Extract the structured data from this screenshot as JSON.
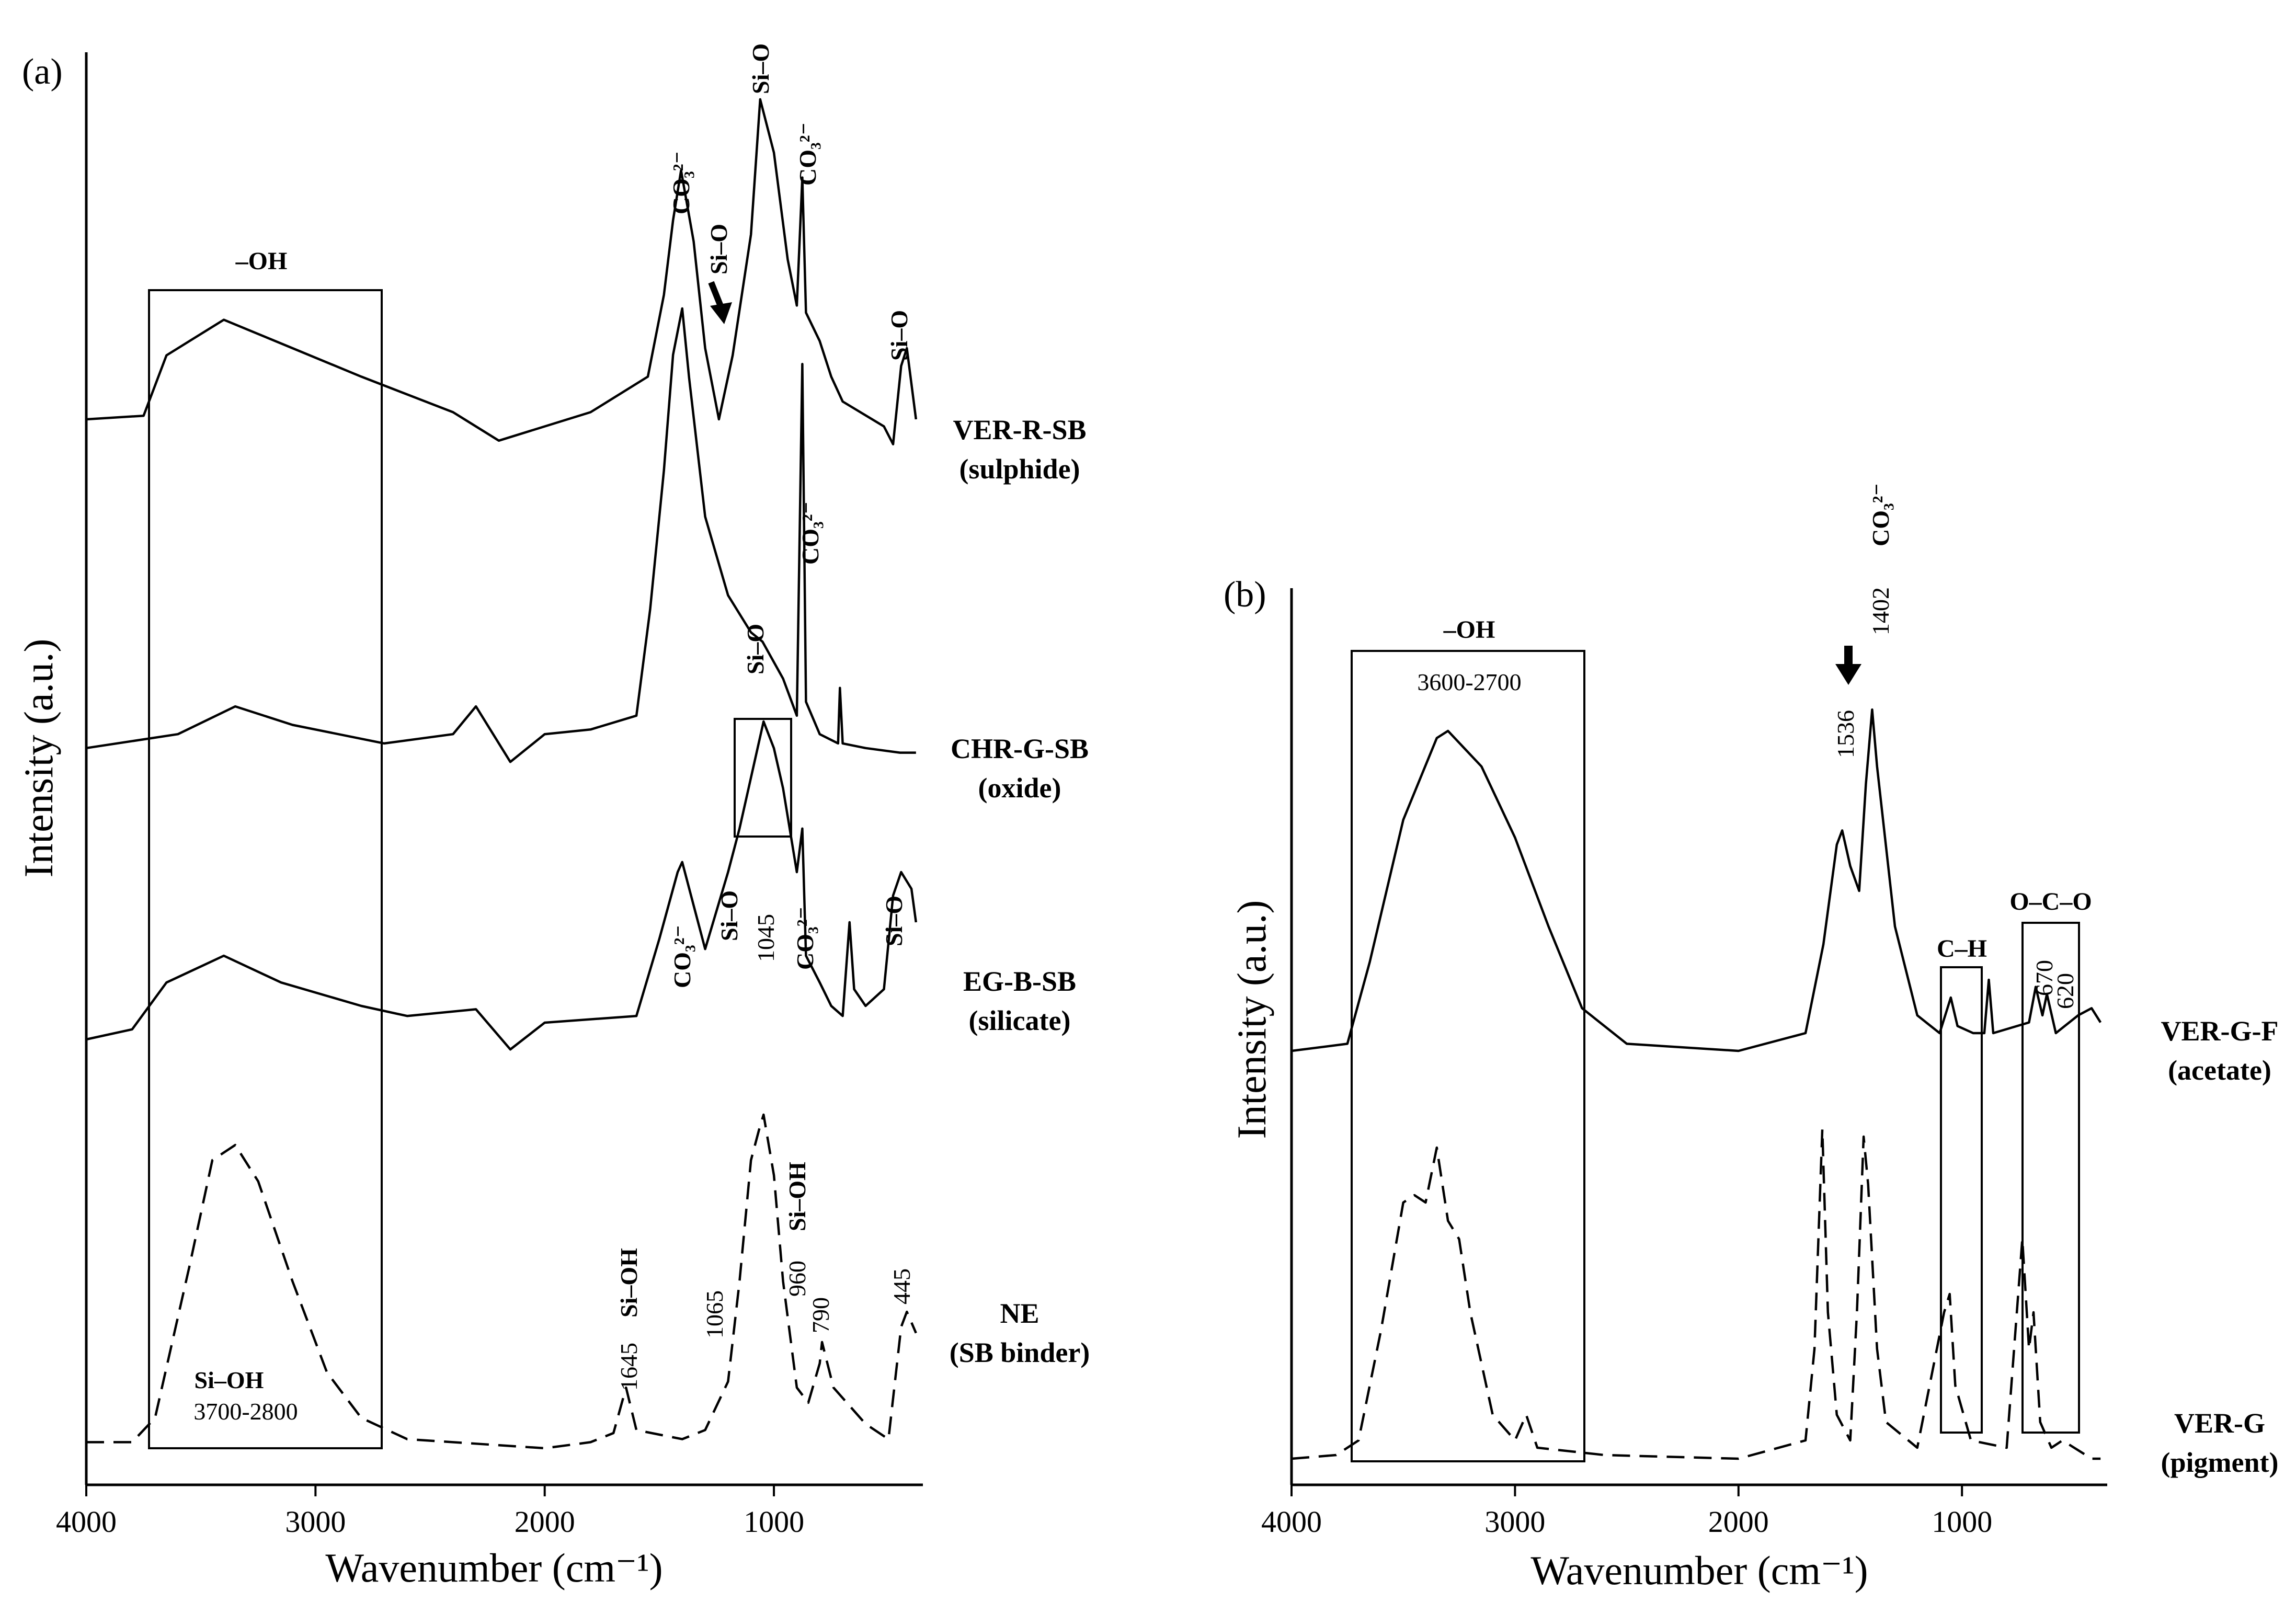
{
  "colors": {
    "ink": "#000000",
    "background": "#ffffff"
  },
  "chart_data": [
    {
      "panel": "(a)",
      "type": "line",
      "xlabel": "Wavenumber (cm⁻¹)",
      "ylabel": "Intensity (a.u.)",
      "xlim": [
        4000,
        350
      ],
      "x_reversed": true,
      "x_ticks": [
        "4000",
        "3000",
        "2000",
        "1000"
      ],
      "grid": false,
      "legend": "none; sample names printed at right of each trace",
      "series": [
        {
          "name": "VER-R-SB",
          "subtitle": "(sulphide)",
          "style": "solid",
          "points": [
            [
              4000,
              0.1
            ],
            [
              3750,
              0.11
            ],
            [
              3650,
              0.28
            ],
            [
              3400,
              0.38
            ],
            [
              3100,
              0.3
            ],
            [
              2800,
              0.22
            ],
            [
              2400,
              0.12
            ],
            [
              2200,
              0.04
            ],
            [
              1800,
              0.12
            ],
            [
              1550,
              0.22
            ],
            [
              1480,
              0.45
            ],
            [
              1440,
              0.66
            ],
            [
              1405,
              0.8
            ],
            [
              1350,
              0.6
            ],
            [
              1300,
              0.3
            ],
            [
              1240,
              0.1
            ],
            [
              1180,
              0.28
            ],
            [
              1100,
              0.62
            ],
            [
              1060,
              1.0
            ],
            [
              1000,
              0.85
            ],
            [
              940,
              0.55
            ],
            [
              900,
              0.42
            ],
            [
              876,
              0.78
            ],
            [
              860,
              0.4
            ],
            [
              800,
              0.32
            ],
            [
              750,
              0.22
            ],
            [
              700,
              0.15
            ],
            [
              520,
              0.08
            ],
            [
              480,
              0.03
            ],
            [
              445,
              0.25
            ],
            [
              420,
              0.3
            ],
            [
              380,
              0.1
            ]
          ]
        },
        {
          "name": "CHR-G-SB",
          "subtitle": "(oxide)",
          "style": "solid",
          "points": [
            [
              4000,
              0.05
            ],
            [
              3600,
              0.08
            ],
            [
              3350,
              0.14
            ],
            [
              3100,
              0.1
            ],
            [
              2700,
              0.06
            ],
            [
              2400,
              0.08
            ],
            [
              2300,
              0.14
            ],
            [
              2150,
              0.02
            ],
            [
              2000,
              0.08
            ],
            [
              1800,
              0.09
            ],
            [
              1600,
              0.12
            ],
            [
              1540,
              0.35
            ],
            [
              1480,
              0.65
            ],
            [
              1440,
              0.9
            ],
            [
              1400,
              1.0
            ],
            [
              1370,
              0.85
            ],
            [
              1300,
              0.55
            ],
            [
              1200,
              0.38
            ],
            [
              1100,
              0.3
            ],
            [
              1050,
              0.28
            ],
            [
              960,
              0.2
            ],
            [
              900,
              0.12
            ],
            [
              876,
              0.88
            ],
            [
              860,
              0.15
            ],
            [
              800,
              0.08
            ],
            [
              720,
              0.06
            ],
            [
              712,
              0.18
            ],
            [
              700,
              0.06
            ],
            [
              600,
              0.05
            ],
            [
              450,
              0.04
            ],
            [
              380,
              0.04
            ]
          ]
        },
        {
          "name": "EG-B-SB",
          "subtitle": "(silicate)",
          "style": "solid",
          "points": [
            [
              4000,
              0.05
            ],
            [
              3800,
              0.08
            ],
            [
              3650,
              0.22
            ],
            [
              3400,
              0.3
            ],
            [
              3150,
              0.22
            ],
            [
              2800,
              0.15
            ],
            [
              2600,
              0.12
            ],
            [
              2300,
              0.14
            ],
            [
              2150,
              0.02
            ],
            [
              2000,
              0.1
            ],
            [
              1600,
              0.12
            ],
            [
              1500,
              0.35
            ],
            [
              1420,
              0.55
            ],
            [
              1400,
              0.58
            ],
            [
              1350,
              0.45
            ],
            [
              1300,
              0.32
            ],
            [
              1200,
              0.55
            ],
            [
              1150,
              0.68
            ],
            [
              1045,
              1.0
            ],
            [
              1000,
              0.92
            ],
            [
              960,
              0.8
            ],
            [
              900,
              0.55
            ],
            [
              876,
              0.68
            ],
            [
              860,
              0.3
            ],
            [
              800,
              0.22
            ],
            [
              750,
              0.15
            ],
            [
              700,
              0.12
            ],
            [
              670,
              0.4
            ],
            [
              650,
              0.2
            ],
            [
              600,
              0.15
            ],
            [
              520,
              0.2
            ],
            [
              480,
              0.48
            ],
            [
              445,
              0.55
            ],
            [
              400,
              0.5
            ],
            [
              380,
              0.4
            ]
          ]
        },
        {
          "name": "NE",
          "subtitle": "(SB binder)",
          "style": "dashed",
          "points": [
            [
              4000,
              0.02
            ],
            [
              3800,
              0.02
            ],
            [
              3700,
              0.1
            ],
            [
              3550,
              0.6
            ],
            [
              3450,
              0.95
            ],
            [
              3350,
              1.0
            ],
            [
              3250,
              0.88
            ],
            [
              3100,
              0.55
            ],
            [
              2950,
              0.25
            ],
            [
              2800,
              0.1
            ],
            [
              2600,
              0.03
            ],
            [
              2000,
              0.0
            ],
            [
              1800,
              0.02
            ],
            [
              1700,
              0.05
            ],
            [
              1645,
              0.2
            ],
            [
              1600,
              0.06
            ],
            [
              1400,
              0.03
            ],
            [
              1300,
              0.06
            ],
            [
              1200,
              0.22
            ],
            [
              1150,
              0.55
            ],
            [
              1100,
              0.95
            ],
            [
              1065,
              1.05
            ],
            [
              1045,
              1.1
            ],
            [
              1000,
              0.9
            ],
            [
              960,
              0.55
            ],
            [
              900,
              0.2
            ],
            [
              850,
              0.15
            ],
            [
              800,
              0.28
            ],
            [
              790,
              0.35
            ],
            [
              740,
              0.2
            ],
            [
              600,
              0.08
            ],
            [
              500,
              0.03
            ],
            [
              445,
              0.4
            ],
            [
              420,
              0.45
            ],
            [
              380,
              0.38
            ]
          ]
        }
      ],
      "annotations": [
        "CO₃²⁻",
        "Si–O",
        "Si–OH",
        "–OH",
        "1645",
        "1065",
        "1045",
        "960",
        "790",
        "445",
        "3700-2800"
      ],
      "boxes": [
        {
          "label": "–OH",
          "range": [
            3700,
            2800
          ]
        },
        {
          "label": "",
          "range": [
            1160,
            900
          ]
        }
      ]
    },
    {
      "panel": "(b)",
      "type": "line",
      "xlabel": "Wavenumber (cm⁻¹)",
      "ylabel": "Intensity (a.u.)",
      "xlim": [
        4000,
        350
      ],
      "x_reversed": true,
      "x_ticks": [
        "4000",
        "3000",
        "2000",
        "1000"
      ],
      "grid": false,
      "legend": "none; sample names printed at right of each trace",
      "series": [
        {
          "name": "VER-G-F",
          "subtitle": "(acetate)",
          "style": "solid",
          "points": [
            [
              4000,
              0.0
            ],
            [
              3750,
              0.02
            ],
            [
              3650,
              0.25
            ],
            [
              3500,
              0.65
            ],
            [
              3350,
              0.88
            ],
            [
              3300,
              0.9
            ],
            [
              3150,
              0.8
            ],
            [
              3000,
              0.6
            ],
            [
              2850,
              0.35
            ],
            [
              2700,
              0.12
            ],
            [
              2500,
              0.02
            ],
            [
              2000,
              0.0
            ],
            [
              1700,
              0.05
            ],
            [
              1620,
              0.3
            ],
            [
              1560,
              0.58
            ],
            [
              1536,
              0.62
            ],
            [
              1500,
              0.52
            ],
            [
              1460,
              0.45
            ],
            [
              1430,
              0.75
            ],
            [
              1402,
              0.96
            ],
            [
              1380,
              0.8
            ],
            [
              1300,
              0.35
            ],
            [
              1200,
              0.1
            ],
            [
              1100,
              0.05
            ],
            [
              1050,
              0.15
            ],
            [
              1020,
              0.07
            ],
            [
              950,
              0.05
            ],
            [
              900,
              0.05
            ],
            [
              880,
              0.2
            ],
            [
              860,
              0.05
            ],
            [
              700,
              0.08
            ],
            [
              670,
              0.18
            ],
            [
              640,
              0.1
            ],
            [
              620,
              0.16
            ],
            [
              580,
              0.05
            ],
            [
              480,
              0.1
            ],
            [
              420,
              0.12
            ],
            [
              380,
              0.08
            ]
          ]
        },
        {
          "name": "VER-G",
          "subtitle": "(pigment)",
          "style": "dashed",
          "points": [
            [
              4000,
              0.0
            ],
            [
              3800,
              0.01
            ],
            [
              3700,
              0.05
            ],
            [
              3600,
              0.35
            ],
            [
              3500,
              0.7
            ],
            [
              3450,
              0.72
            ],
            [
              3400,
              0.7
            ],
            [
              3350,
              0.85
            ],
            [
              3300,
              0.65
            ],
            [
              3250,
              0.6
            ],
            [
              3200,
              0.4
            ],
            [
              3100,
              0.12
            ],
            [
              3000,
              0.05
            ],
            [
              2950,
              0.12
            ],
            [
              2900,
              0.03
            ],
            [
              2600,
              0.01
            ],
            [
              2000,
              0.0
            ],
            [
              1700,
              0.05
            ],
            [
              1660,
              0.3
            ],
            [
              1625,
              0.9
            ],
            [
              1600,
              0.4
            ],
            [
              1560,
              0.12
            ],
            [
              1500,
              0.05
            ],
            [
              1470,
              0.4
            ],
            [
              1440,
              0.88
            ],
            [
              1420,
              0.75
            ],
            [
              1380,
              0.3
            ],
            [
              1340,
              0.1
            ],
            [
              1200,
              0.03
            ],
            [
              1080,
              0.4
            ],
            [
              1055,
              0.45
            ],
            [
              1030,
              0.2
            ],
            [
              960,
              0.05
            ],
            [
              800,
              0.03
            ],
            [
              730,
              0.6
            ],
            [
              700,
              0.3
            ],
            [
              680,
              0.4
            ],
            [
              650,
              0.1
            ],
            [
              600,
              0.03
            ],
            [
              550,
              0.05
            ],
            [
              420,
              0.0
            ],
            [
              380,
              0.0
            ]
          ]
        }
      ],
      "annotations": [
        "CO₃²⁻",
        "1402",
        "1536",
        "–OH",
        "3600-2700",
        "C–H",
        "O–C–O",
        "670",
        "620"
      ],
      "boxes": [
        {
          "label": "–OH",
          "range": [
            3750,
            2700
          ]
        },
        {
          "label": "C–H",
          "range": [
            1130,
            950
          ]
        },
        {
          "label": "O–C–O",
          "range": [
            760,
            530
          ]
        }
      ]
    }
  ],
  "text": {
    "a": {
      "panel_letter": "(a)",
      "y_label": "Intensity (a.u.)",
      "x_label": "Wavenumber (cm⁻¹)",
      "ticks": [
        "4000",
        "3000",
        "2000",
        "1000"
      ],
      "samples": [
        {
          "name": "VER-R-SB",
          "sub": "(sulphide)"
        },
        {
          "name": "CHR-G-SB",
          "sub": "(oxide)"
        },
        {
          "name": "EG-B-SB",
          "sub": "(silicate)"
        },
        {
          "name": "NE",
          "sub": "(SB binder)"
        }
      ],
      "oh_box_label": "–OH",
      "sioh_label": "Si–OH",
      "sioh_range": "3700-2800",
      "co3_1": "CO₃²⁻",
      "sio_1": "Si–O",
      "sio_2": "Si–O",
      "co3_2": "CO₃²⁻",
      "sio_3": "Si–O",
      "co3_3": "CO₃²⁻",
      "sio_4": "Si–O",
      "co3_4": "CO₃²⁻",
      "sio_5": "Si–O",
      "co3_5": "CO₃²⁻",
      "sio_6": "Si–O",
      "n1645": "1645",
      "sioh_1645": "Si–OH",
      "n1065": "1065",
      "n1045": "1045",
      "n960": "960",
      "sioh_960": "Si–OH",
      "n790": "790",
      "n445": "445"
    },
    "b": {
      "panel_letter": "(b)",
      "y_label": "Intensity (a.u.)",
      "x_label": "Wavenumber (cm⁻¹)",
      "ticks": [
        "4000",
        "3000",
        "2000",
        "1000"
      ],
      "samples": [
        {
          "name": "VER-G-F",
          "sub": "(acetate)"
        },
        {
          "name": "VER-G",
          "sub": "(pigment)"
        }
      ],
      "oh_box_label": "–OH",
      "oh_range": "3600-2700",
      "n1536": "1536",
      "n1402": "1402",
      "co3": "CO₃²⁻",
      "ch_label": "C–H",
      "oco_label": "O–C–O",
      "n670": "670",
      "n620": "620"
    }
  }
}
